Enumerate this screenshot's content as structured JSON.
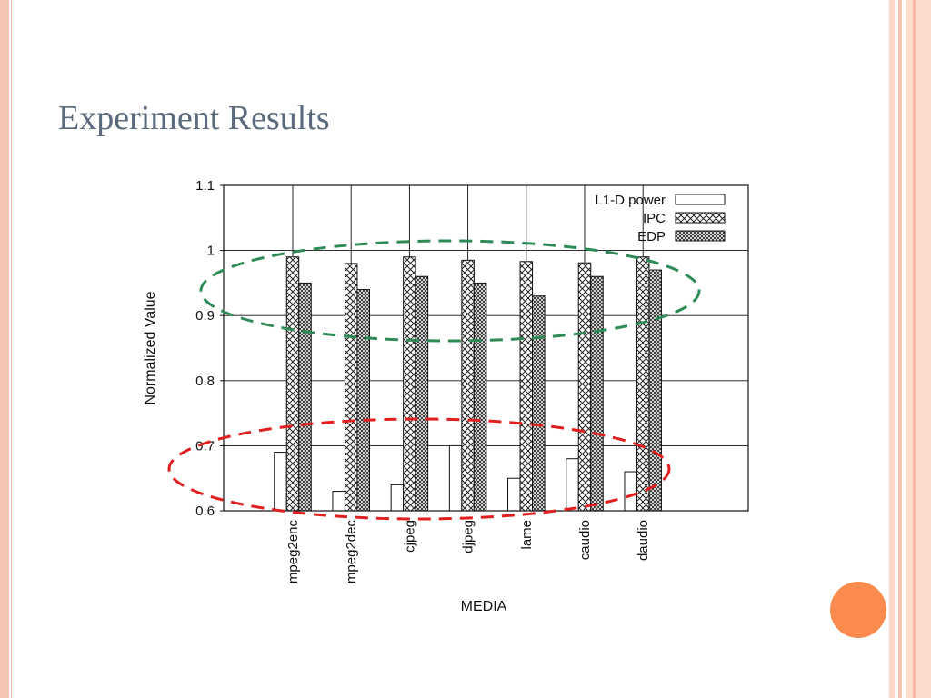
{
  "slide": {
    "title": "Experiment Results",
    "colors": {
      "title_text": "#5b6b7d",
      "border": "#f7c6b3",
      "accent_circle": "#fb8a4f",
      "highlight_top": "#2e8b57",
      "highlight_bottom": "#e02020"
    }
  },
  "chart_data": {
    "type": "bar",
    "xlabel": "MEDIA",
    "ylabel": "Normalized Value",
    "ylim": [
      0.6,
      1.1
    ],
    "yticks": [
      0.6,
      0.7,
      0.8,
      0.9,
      1,
      1.1
    ],
    "ytick_labels": [
      "0.6",
      "0.7",
      "0.8",
      "0.9",
      "1",
      "1.1"
    ],
    "grid": true,
    "legend_position": "top-right",
    "categories": [
      "mpeg2enc",
      "mpeg2dec",
      "cjpeg",
      "djpeg",
      "lame",
      "caudio",
      "daudio"
    ],
    "series": [
      {
        "name": "L1-D power",
        "pattern": "none",
        "values": [
          0.69,
          0.63,
          0.64,
          0.7,
          0.65,
          0.68,
          0.66
        ]
      },
      {
        "name": "IPC",
        "pattern": "crosshatch",
        "values": [
          0.99,
          0.98,
          0.99,
          0.985,
          0.983,
          0.981,
          0.99
        ]
      },
      {
        "name": "EDP",
        "pattern": "dense-crosshatch",
        "values": [
          0.95,
          0.94,
          0.96,
          0.95,
          0.93,
          0.96,
          0.97
        ]
      }
    ],
    "annotations": [
      {
        "shape": "dashed-ellipse",
        "color": "green",
        "highlights": "IPC and EDP values near 1"
      },
      {
        "shape": "dashed-ellipse",
        "color": "red",
        "highlights": "L1-D power values near 0.6-0.7"
      }
    ]
  }
}
